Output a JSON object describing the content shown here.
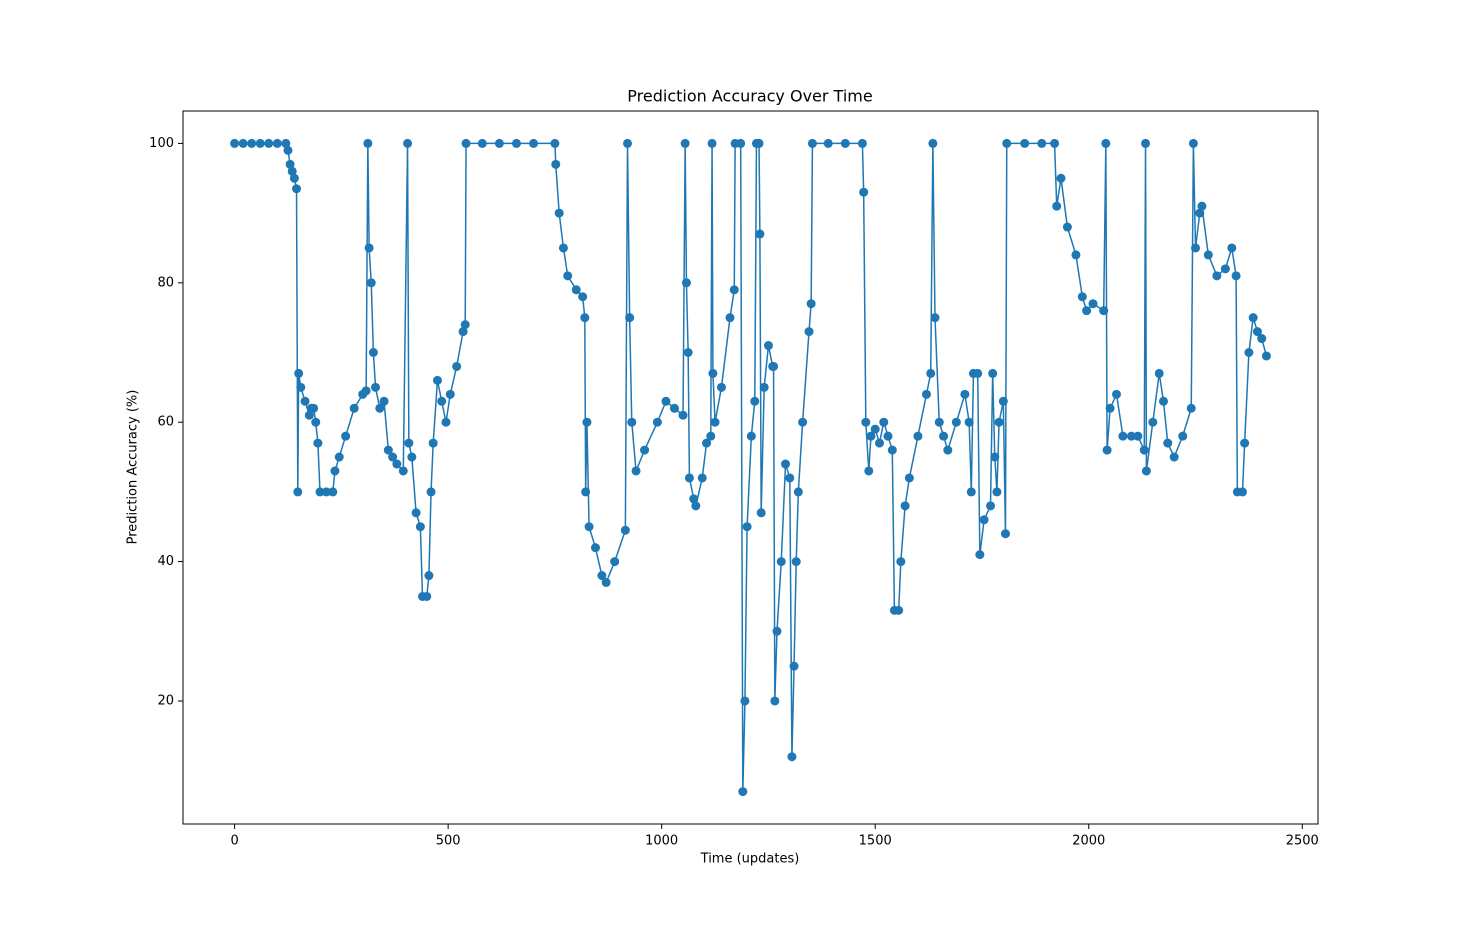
{
  "chart_data": {
    "type": "line",
    "title": "Prediction Accuracy Over Time",
    "x_label": "Time (updates)",
    "y_label": "Prediction Accuracy (%)",
    "color": "#1f77b4",
    "markers": true,
    "grid": false,
    "xlim": [
      -120.8,
      2536.8
    ],
    "xticks": [
      0,
      500,
      1000,
      1500,
      2000,
      2500
    ],
    "ylim": [
      2.35,
      104.65
    ],
    "yticks": [
      20,
      40,
      60,
      80,
      100
    ],
    "x": [
      0,
      20,
      40,
      60,
      80,
      100,
      120,
      125,
      130,
      135,
      140,
      145,
      148,
      150,
      155,
      165,
      175,
      180,
      185,
      190,
      195,
      200,
      215,
      230,
      235,
      245,
      260,
      280,
      300,
      308,
      312,
      315,
      320,
      325,
      330,
      340,
      350,
      360,
      370,
      380,
      395,
      405,
      408,
      415,
      425,
      435,
      440,
      450,
      455,
      460,
      465,
      475,
      485,
      495,
      505,
      520,
      535,
      540,
      542,
      580,
      620,
      660,
      700,
      750,
      752,
      760,
      770,
      780,
      800,
      815,
      820,
      822,
      825,
      830,
      845,
      860,
      870,
      890,
      915,
      920,
      925,
      930,
      940,
      960,
      990,
      1010,
      1030,
      1050,
      1055,
      1058,
      1062,
      1065,
      1075,
      1080,
      1095,
      1105,
      1115,
      1118,
      1120,
      1125,
      1140,
      1160,
      1170,
      1172,
      1185,
      1190,
      1195,
      1200,
      1210,
      1218,
      1222,
      1228,
      1230,
      1233,
      1240,
      1250,
      1260,
      1262,
      1265,
      1270,
      1280,
      1290,
      1300,
      1305,
      1310,
      1315,
      1320,
      1330,
      1345,
      1350,
      1353,
      1390,
      1430,
      1470,
      1473,
      1478,
      1485,
      1490,
      1500,
      1510,
      1520,
      1530,
      1540,
      1545,
      1555,
      1560,
      1570,
      1580,
      1600,
      1620,
      1630,
      1635,
      1640,
      1650,
      1660,
      1670,
      1690,
      1710,
      1720,
      1725,
      1730,
      1740,
      1745,
      1755,
      1770,
      1775,
      1780,
      1785,
      1790,
      1800,
      1805,
      1808,
      1850,
      1890,
      1920,
      1925,
      1935,
      1950,
      1970,
      1985,
      1995,
      2010,
      2035,
      2040,
      2043,
      2050,
      2065,
      2080,
      2100,
      2115,
      2130,
      2133,
      2135,
      2150,
      2165,
      2175,
      2185,
      2200,
      2220,
      2240,
      2245,
      2250,
      2260,
      2265,
      2280,
      2300,
      2320,
      2335,
      2345,
      2348,
      2360,
      2365,
      2375,
      2385,
      2395,
      2405,
      2416
    ],
    "values": [
      100,
      100,
      100,
      100,
      100,
      100,
      100,
      99,
      97,
      96,
      95,
      93.5,
      50,
      67,
      65,
      63,
      61,
      62,
      62,
      60,
      57,
      50,
      50,
      50,
      53,
      55,
      58,
      62,
      64,
      64.5,
      100,
      85,
      80,
      70,
      65,
      62,
      63,
      56,
      55,
      54,
      53,
      100,
      57,
      55,
      47,
      45,
      35,
      35,
      38,
      50,
      57,
      66,
      63,
      60,
      64,
      68,
      73,
      74,
      100,
      100,
      100,
      100,
      100,
      100,
      97,
      90,
      85,
      81,
      79,
      78,
      75,
      50,
      60,
      45,
      42,
      38,
      37,
      40,
      44.5,
      100,
      75,
      60,
      53,
      56,
      60,
      63,
      62,
      61,
      100,
      80,
      70,
      52,
      49,
      48,
      52,
      57,
      58,
      100,
      67,
      60,
      65,
      75,
      79,
      100,
      100,
      7,
      20,
      45,
      58,
      63,
      100,
      100,
      87,
      47,
      65,
      71,
      68,
      68,
      20,
      30,
      40,
      54,
      52,
      12,
      25,
      40,
      50,
      60,
      73,
      77,
      100,
      100,
      100,
      100,
      93,
      60,
      53,
      58,
      59,
      57,
      60,
      58,
      56,
      33,
      33,
      40,
      48,
      52,
      58,
      64,
      67,
      100,
      75,
      60,
      58,
      56,
      60,
      64,
      60,
      50,
      67,
      67,
      41,
      46,
      48,
      67,
      55,
      50,
      60,
      63,
      44,
      100,
      100,
      100,
      100,
      91,
      95,
      88,
      84,
      78,
      76,
      77,
      76,
      100,
      56,
      62,
      64,
      58,
      58,
      58,
      56,
      100,
      53,
      60,
      67,
      63,
      57,
      55,
      58,
      62,
      100,
      85,
      90,
      91,
      84,
      81,
      82,
      85,
      81,
      50,
      50,
      57,
      70,
      75,
      73,
      72,
      69.5
    ]
  }
}
